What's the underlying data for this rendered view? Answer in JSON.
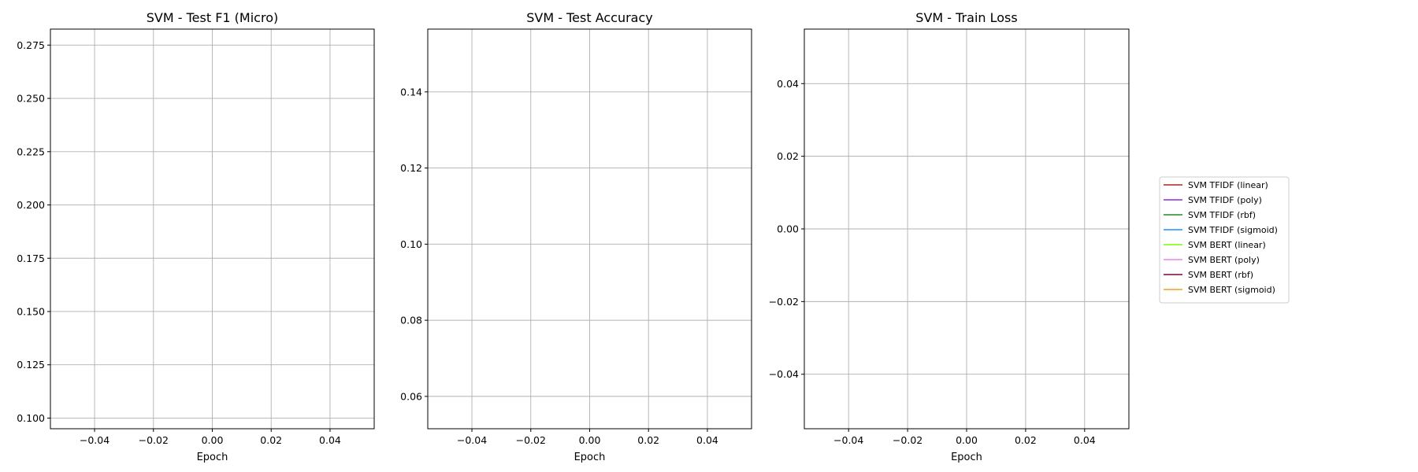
{
  "chart_data": [
    {
      "type": "line",
      "title": "SVM - Test F1 (Micro)",
      "xlabel": "Epoch",
      "ylabel": "",
      "xlim": [
        -0.055,
        0.055
      ],
      "ylim": [
        0.095,
        0.2825
      ],
      "xticks": [
        -0.04,
        -0.02,
        0.0,
        0.02,
        0.04
      ],
      "xtick_labels": [
        "−0.04",
        "−0.02",
        "0.00",
        "0.02",
        "0.04"
      ],
      "yticks": [
        0.1,
        0.125,
        0.15,
        0.175,
        0.2,
        0.225,
        0.25,
        0.275
      ],
      "ytick_labels": [
        "0.100",
        "0.125",
        "0.150",
        "0.175",
        "0.200",
        "0.225",
        "0.250",
        "0.275"
      ],
      "grid": true,
      "series": []
    },
    {
      "type": "line",
      "title": "SVM - Test Accuracy",
      "xlabel": "Epoch",
      "ylabel": "",
      "xlim": [
        -0.055,
        0.055
      ],
      "ylim": [
        0.0515,
        0.1565
      ],
      "xticks": [
        -0.04,
        -0.02,
        0.0,
        0.02,
        0.04
      ],
      "xtick_labels": [
        "−0.04",
        "−0.02",
        "0.00",
        "0.02",
        "0.04"
      ],
      "yticks": [
        0.06,
        0.08,
        0.1,
        0.12,
        0.14
      ],
      "ytick_labels": [
        "0.06",
        "0.08",
        "0.10",
        "0.12",
        "0.14"
      ],
      "grid": true,
      "series": []
    },
    {
      "type": "line",
      "title": "SVM - Train Loss",
      "xlabel": "Epoch",
      "ylabel": "",
      "xlim": [
        -0.055,
        0.055
      ],
      "ylim": [
        -0.055,
        0.055
      ],
      "xticks": [
        -0.04,
        -0.02,
        0.0,
        0.02,
        0.04
      ],
      "xtick_labels": [
        "−0.04",
        "−0.02",
        "0.00",
        "0.02",
        "0.04"
      ],
      "yticks": [
        -0.04,
        -0.02,
        0.0,
        0.02,
        0.04
      ],
      "ytick_labels": [
        "−0.04",
        "−0.02",
        "0.00",
        "0.02",
        "0.04"
      ],
      "grid": true,
      "series": []
    }
  ],
  "legend": {
    "placement": "right",
    "entries": [
      {
        "label": "SVM TFIDF (linear)",
        "color": "#b22222"
      },
      {
        "label": "SVM TFIDF (poly)",
        "color": "#8a2be2"
      },
      {
        "label": "SVM TFIDF (rbf)",
        "color": "#228b22"
      },
      {
        "label": "SVM TFIDF (sigmoid)",
        "color": "#1e90ff"
      },
      {
        "label": "SVM BERT (linear)",
        "color": "#7cfc00"
      },
      {
        "label": "SVM BERT (poly)",
        "color": "#ee82ee"
      },
      {
        "label": "SVM BERT (rbf)",
        "color": "#800040"
      },
      {
        "label": "SVM BERT (sigmoid)",
        "color": "#f4a21b"
      }
    ]
  }
}
